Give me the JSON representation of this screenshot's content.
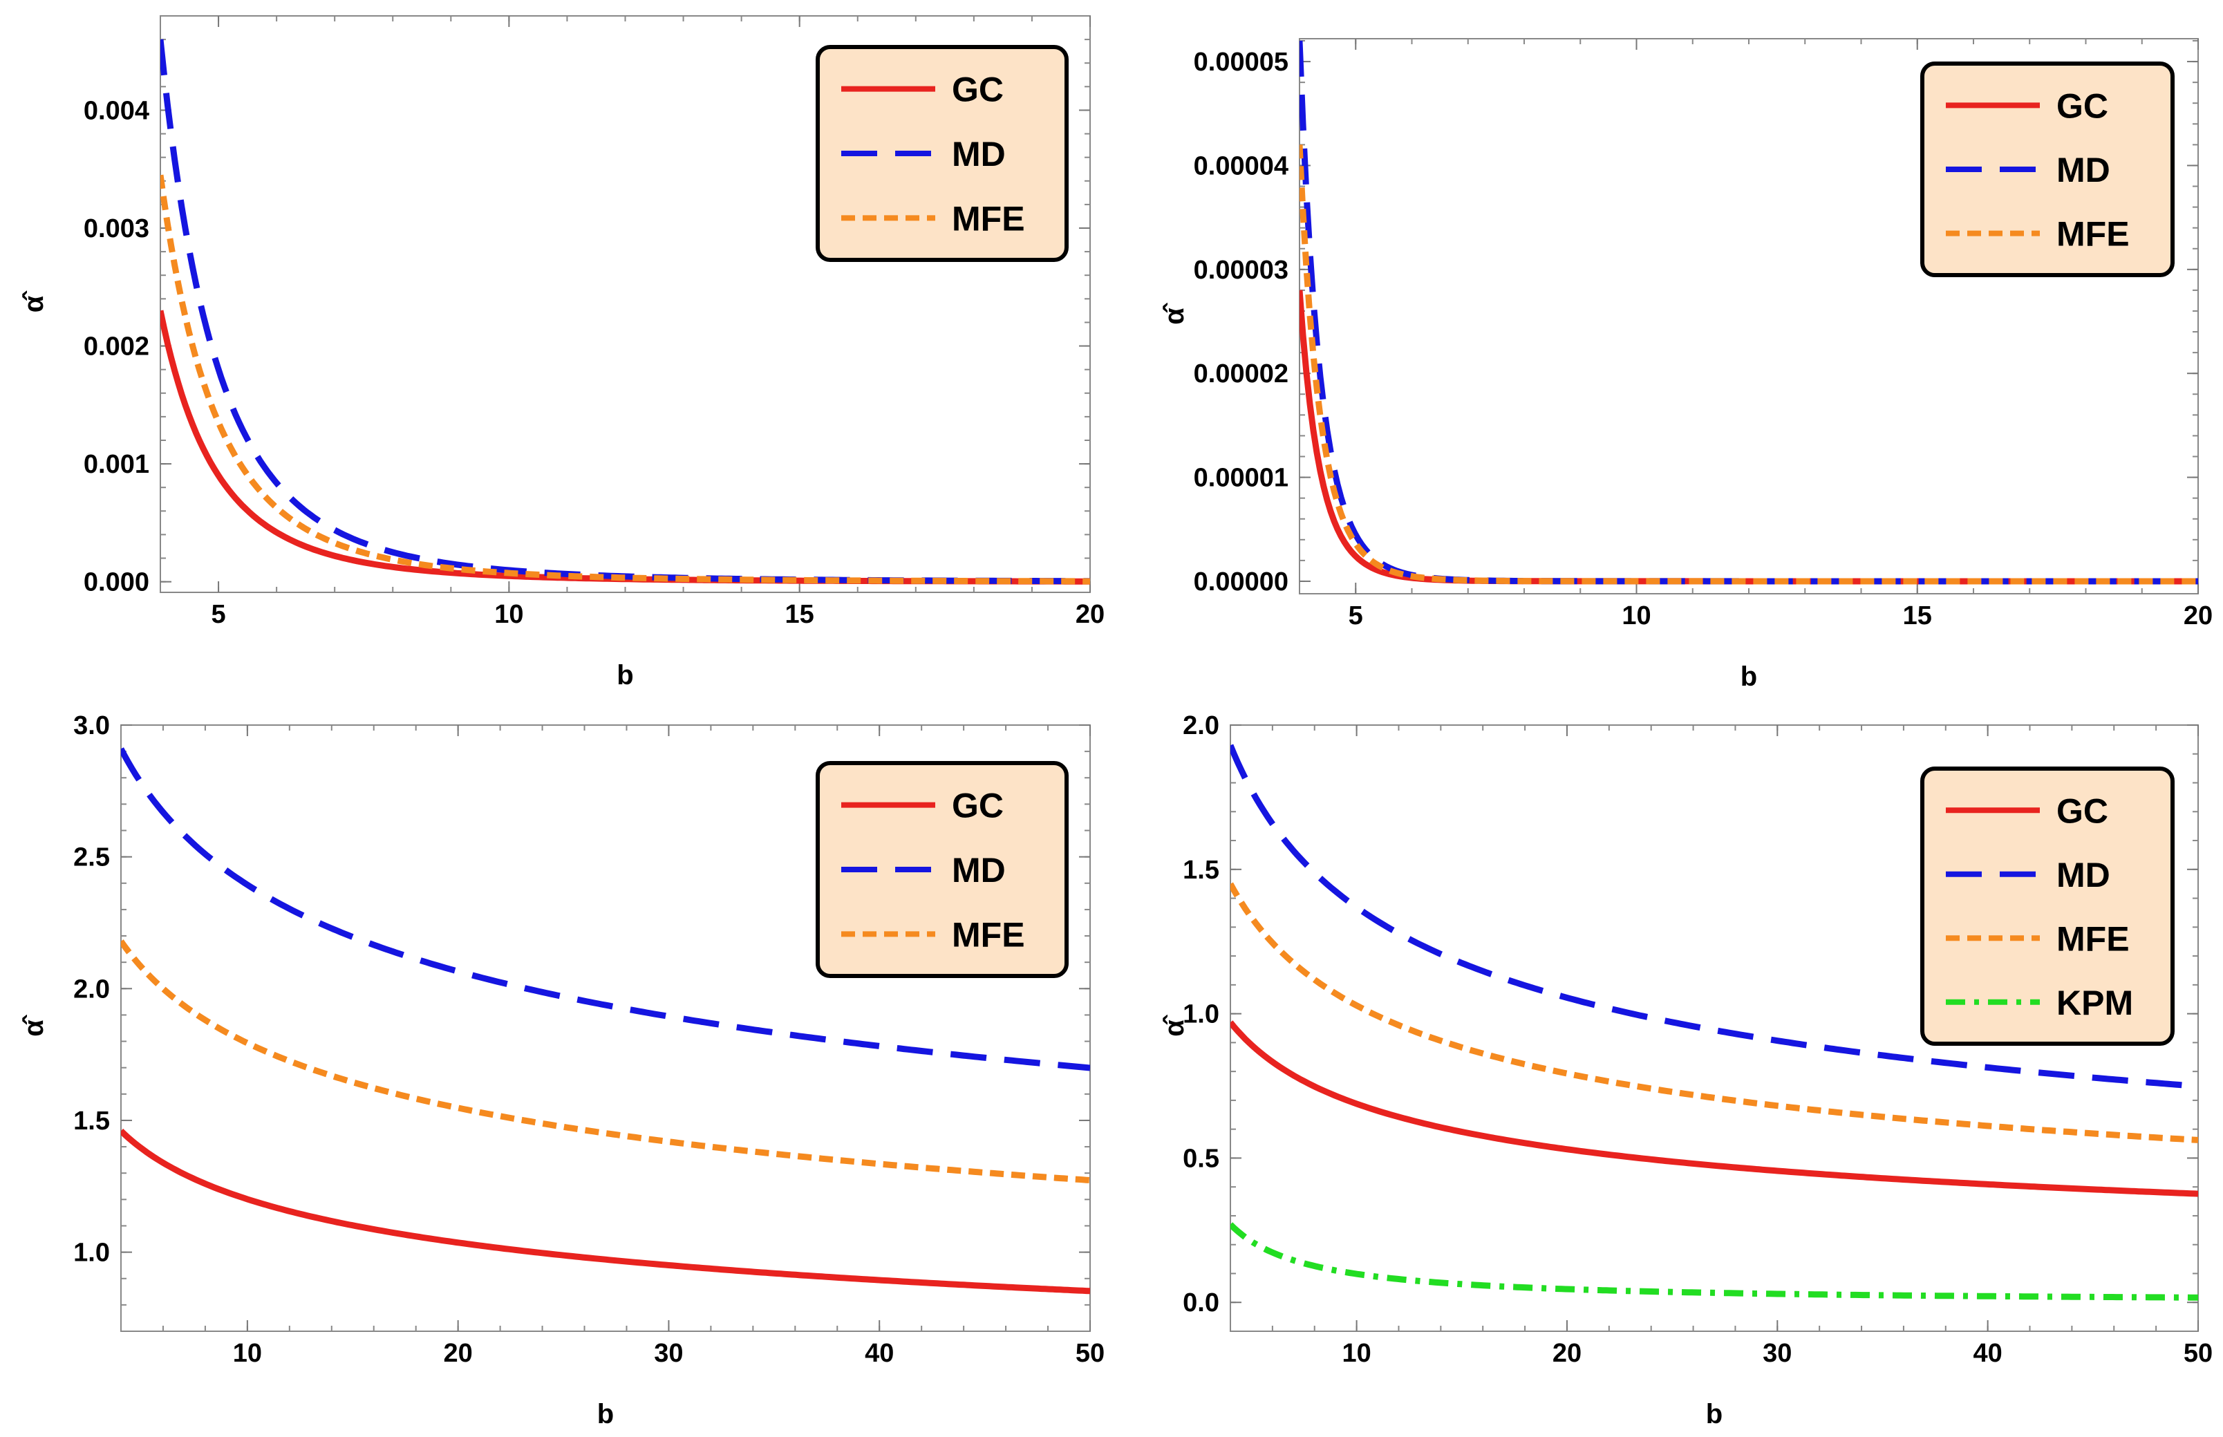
{
  "chart_data": [
    {
      "type": "line",
      "panel": "top-left",
      "title": "",
      "xlabel": "b",
      "ylabel": "α̂",
      "xlim": [
        4,
        20
      ],
      "ylim": [
        -9e-05,
        0.0048
      ],
      "xticks": [
        5,
        10,
        15,
        20
      ],
      "xtick_labels": [
        "5",
        "10",
        "15",
        "20"
      ],
      "yticks": [
        0,
        0.001,
        0.002,
        0.003,
        0.004
      ],
      "ytick_labels": [
        "0.000",
        "0.001",
        "0.002",
        "0.003",
        "0.004"
      ],
      "legend_position": "top-right",
      "model": "a*(4/b)^p",
      "series": [
        {
          "name": "GC",
          "color": "#e8231f",
          "style": "solid",
          "a": 0.0023,
          "p": 4.2
        },
        {
          "name": "MD",
          "color": "#1515e0",
          "style": "dashed",
          "a": 0.0046,
          "p": 4.2
        },
        {
          "name": "MFE",
          "color": "#f58a1f",
          "style": "dotted",
          "a": 0.00345,
          "p": 4.2
        }
      ]
    },
    {
      "type": "line",
      "panel": "top-right",
      "title": "",
      "xlabel": "b",
      "ylabel": "α̂",
      "xlim": [
        4,
        20
      ],
      "ylim": [
        -1.2e-06,
        5.22e-05
      ],
      "xticks": [
        5,
        10,
        15,
        20
      ],
      "xtick_labels": [
        "5",
        "10",
        "15",
        "20"
      ],
      "yticks": [
        0,
        1e-05,
        2e-05,
        3e-05,
        4e-05,
        5e-05
      ],
      "ytick_labels": [
        "0.00000",
        "0.00001",
        "0.00002",
        "0.00003",
        "0.00004",
        "0.00005"
      ],
      "legend_position": "top-right",
      "model": "a*(4/b)^p",
      "series": [
        {
          "name": "GC",
          "color": "#e8231f",
          "style": "solid",
          "a": 2.8e-05,
          "p": 11
        },
        {
          "name": "MD",
          "color": "#1515e0",
          "style": "dashed",
          "a": 5.2e-05,
          "p": 11
        },
        {
          "name": "MFE",
          "color": "#f58a1f",
          "style": "dotted",
          "a": 4.2e-05,
          "p": 11
        }
      ]
    },
    {
      "type": "line",
      "panel": "bottom-left",
      "title": "",
      "xlabel": "b",
      "ylabel": "α̂",
      "xlim": [
        4,
        50
      ],
      "ylim": [
        0.7,
        3.0
      ],
      "xticks": [
        10,
        20,
        30,
        40,
        50
      ],
      "xtick_labels": [
        "10",
        "20",
        "30",
        "40",
        "50"
      ],
      "yticks": [
        1.0,
        1.5,
        2.0,
        2.5,
        3.0
      ],
      "ytick_labels": [
        "1.0",
        "1.5",
        "2.0",
        "2.5",
        "3.0"
      ],
      "legend_position": "top-right",
      "model": "a*(4/b)^p",
      "series": [
        {
          "name": "GC",
          "color": "#e8231f",
          "style": "solid",
          "a": 1.46,
          "p": 0.213
        },
        {
          "name": "MD",
          "color": "#1515e0",
          "style": "dashed",
          "a": 2.91,
          "p": 0.213
        },
        {
          "name": "MFE",
          "color": "#f58a1f",
          "style": "dotted",
          "a": 2.18,
          "p": 0.213
        }
      ]
    },
    {
      "type": "line",
      "panel": "bottom-right",
      "title": "",
      "xlabel": "b",
      "ylabel": "α̂",
      "xlim": [
        4,
        50
      ],
      "ylim": [
        -0.1,
        2.0
      ],
      "xticks": [
        10,
        20,
        30,
        40,
        50
      ],
      "xtick_labels": [
        "10",
        "20",
        "30",
        "40",
        "50"
      ],
      "yticks": [
        0,
        0.5,
        1.0,
        1.5,
        2.0
      ],
      "ytick_labels": [
        "0.0",
        "0.5",
        "1.0",
        "1.5",
        "2.0"
      ],
      "legend_position": "top-right",
      "model": "a*(4/b)^p",
      "series": [
        {
          "name": "GC",
          "color": "#e8231f",
          "style": "solid",
          "a": 0.97,
          "p": 0.375
        },
        {
          "name": "MD",
          "color": "#1515e0",
          "style": "dashed",
          "a": 1.93,
          "p": 0.375
        },
        {
          "name": "MFE",
          "color": "#f58a1f",
          "style": "dotted",
          "a": 1.45,
          "p": 0.375
        },
        {
          "name": "KPM",
          "color": "#22dd22",
          "style": "dashdot",
          "a": 0.27,
          "p": 1.1
        }
      ]
    }
  ]
}
